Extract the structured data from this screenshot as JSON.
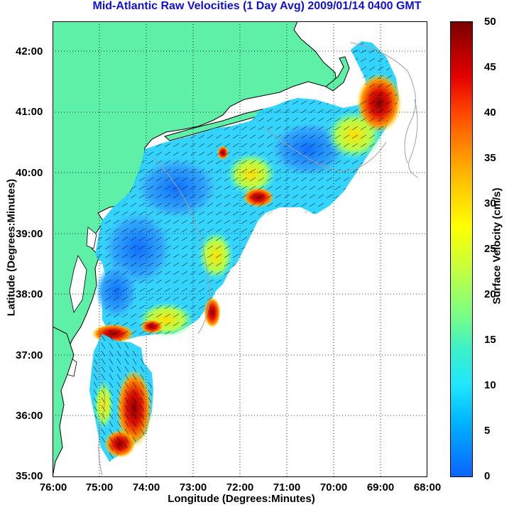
{
  "title": "Mid-Atlantic Raw Velocities (1 Day Avg) 2009/01/14 0400 GMT",
  "axes": {
    "y_title": "Latitude (Degrees:Minutes)",
    "x_title": "Longitude (Degrees:Minutes)",
    "y_ticks": [
      "42:00",
      "41:00",
      "40:00",
      "39:00",
      "38:00",
      "37:00",
      "36:00",
      "35:00"
    ],
    "x_ticks": [
      "76:00",
      "75:00",
      "74:00",
      "73:00",
      "72:00",
      "71:00",
      "70:00",
      "69:00",
      "68:00"
    ]
  },
  "colorbar": {
    "title": "Surface Velocity (cm/s)",
    "ticks": [
      "50",
      "45",
      "40",
      "35",
      "30",
      "25",
      "20",
      "15",
      "10",
      "5",
      "0"
    ]
  },
  "colors": {
    "land": "#5ff0a8",
    "title": "#1010d8",
    "coast": "#000000",
    "bathymetry": "#a0a0a0"
  },
  "chart_data": {
    "type": "heatmap",
    "title": "Mid-Atlantic Raw Velocities (1 Day Avg) 2009/01/14 0400 GMT",
    "xlabel": "Longitude (Degrees:Minutes)",
    "ylabel": "Latitude (Degrees:Minutes)",
    "xlim": [
      -76,
      -68
    ],
    "ylim": [
      35,
      42.5
    ],
    "colorbar_label": "Surface Velocity (cm/s)",
    "colorbar_range": [
      0,
      50
    ],
    "grid": true
  }
}
